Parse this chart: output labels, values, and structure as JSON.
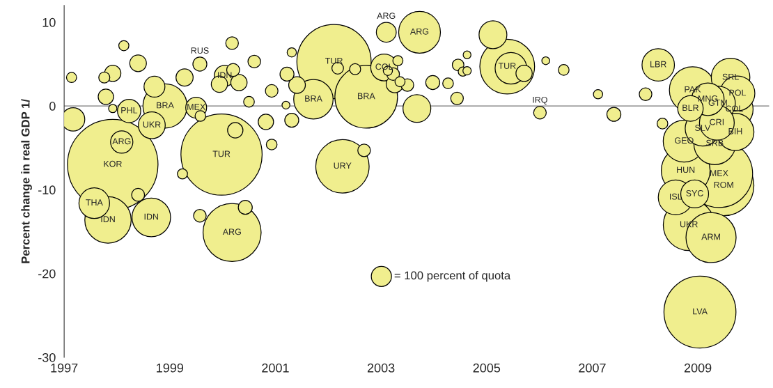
{
  "chart_data": {
    "type": "bubble",
    "ylabel": "Percent change in real GDP 1/",
    "x": [
      1997.92,
      1999.98,
      2002.11,
      2009.04,
      2002.72,
      2009.49,
      2009.4,
      2000.18,
      2005.39,
      2002.27,
      2008.83,
      2009.25,
      2008.77,
      1997.83,
      2008.9,
      1998.91,
      2003.73,
      2008.74,
      2009.32,
      2001.72,
      1998.65,
      2009.62,
      2009.69,
      2009.71,
      2009.75,
      2009.09,
      2008.58,
      2009.38,
      2009.36,
      2008.25,
      2009.19,
      2005.46,
      1997.57,
      2003.68,
      2005.12,
      2008.94,
      1998.66,
      2003.06,
      2008.86,
      1998.23,
      1997.17,
      1998.09,
      1998.71,
      1999.5,
      2000.04,
      2003.1,
      1999.28,
      2003.26,
      1998.4,
      2001.41,
      1997.92,
      1999.94,
      2000.31,
      2005.71,
      1997.79,
      2000.24,
      2000.82,
      1999.57,
      2000.43,
      2001.22,
      2001.31,
      2003.98,
      2007.41,
      1998.4,
      2000.2,
      2000.18,
      2000.6,
      1999.57,
      2000.93,
      2002.68,
      2003.23,
      2003.5,
      2004.44,
      2006.01,
      2008.01,
      2002.18,
      2004.46,
      1997.76,
      2002.51,
      1999.58,
      2000.5,
      2000.93,
      2004.27,
      2006.46,
      2008.33,
      1997.14,
      1998.13,
      1999.24,
      2003.32,
      2003.36,
      2001.31,
      2003.13,
      2004.55,
      2007.11,
      1997.92,
      2004.63,
      2001.2,
      2004.63,
      2006.12
    ],
    "values": [
      -7.0,
      -5.8,
      5.3,
      -24.6,
      1.1,
      -9.5,
      -8.1,
      -15.1,
      4.7,
      -7.2,
      -14.2,
      -15.7,
      -7.7,
      -13.6,
      1.9,
      0.0,
      8.8,
      -4.2,
      -4.5,
      0.8,
      -13.3,
      3.4,
      -0.4,
      -3.1,
      1.5,
      -2.7,
      -10.9,
      0.3,
      -2.0,
      4.9,
      0.8,
      4.5,
      -11.6,
      -0.3,
      8.5,
      -10.5,
      -2.3,
      4.6,
      -0.3,
      -0.6,
      -1.6,
      -4.3,
      2.3,
      -0.2,
      3.6,
      8.8,
      3.4,
      2.6,
      5.1,
      2.5,
      3.9,
      2.6,
      2.8,
      3.9,
      1.1,
      -2.9,
      -1.9,
      5.0,
      -12.1,
      3.8,
      -1.7,
      2.8,
      -1.0,
      -10.6,
      4.3,
      7.5,
      5.3,
      -13.1,
      1.8,
      -5.3,
      3.8,
      2.5,
      0.9,
      -0.8,
      1.4,
      4.5,
      4.9,
      3.4,
      4.4,
      -1.2,
      0.5,
      -4.6,
      2.7,
      4.3,
      -2.1,
      3.4,
      7.2,
      -8.1,
      5.4,
      2.9,
      6.4,
      4.2,
      4.1,
      1.4,
      -0.3,
      4.2,
      0.1,
      6.1,
      5.4
    ],
    "sizes": [
      2010,
      1617,
      1351,
      1271,
      963,
      892,
      1110,
      827,
      735,
      698,
      641,
      616,
      583,
      527,
      527,
      478,
      428,
      428,
      428,
      381,
      365,
      365,
      347,
      339,
      297,
      297,
      297,
      297,
      297,
      258,
      258,
      245,
      230,
      190,
      190,
      190,
      177,
      177,
      159,
      133,
      133,
      122,
      107,
      107,
      107,
      97,
      72,
      72,
      68,
      68,
      65,
      65,
      65,
      65,
      58,
      58,
      58,
      48,
      48,
      48,
      48,
      48,
      48,
      41,
      41,
      39,
      39,
      39,
      39,
      39,
      39,
      39,
      39,
      39,
      39,
      33,
      33,
      30,
      30,
      28,
      28,
      28,
      28,
      28,
      28,
      25,
      25,
      25,
      25,
      25,
      21,
      21,
      21,
      21,
      17,
      17,
      15,
      15,
      15
    ],
    "value_labels": [
      "KOR",
      "TUR",
      "TUR",
      "LVA",
      "BRA",
      "ROM",
      "MEX",
      "ARG",
      "TUR",
      "URY",
      "UKR",
      "ARM",
      "HUN",
      "IDN",
      "PAK",
      "BRA",
      "ARG",
      "GEO",
      "SRB",
      "BRA",
      "IDN",
      "SRL",
      "COL",
      "BIH",
      "POL",
      "SLV",
      "ISL",
      "GTM",
      "CRI",
      "LBR",
      "MNG",
      null,
      "THA",
      null,
      null,
      "SYC",
      "UKR",
      "COL",
      "BLR",
      "PHL",
      null,
      "ARG",
      null,
      "MEX",
      "IDN",
      "ARG",
      null,
      null,
      null,
      null,
      null,
      null,
      null,
      null,
      null,
      null,
      null,
      "RUS",
      null,
      null,
      null,
      null,
      null,
      null,
      null,
      null,
      null,
      null,
      null,
      null,
      null,
      null,
      null,
      "IRQ",
      null,
      null,
      null,
      null,
      null,
      null,
      null,
      null,
      null,
      null,
      null,
      null,
      null,
      null,
      null,
      null,
      null,
      null,
      null,
      null,
      null,
      null,
      null,
      null,
      null
    ],
    "color": "#f0ee8e",
    "size_legend": [
      {
        "value": 100,
        "label": "= 100 percent of quota"
      }
    ],
    "xlim": [
      1997,
      2010.35
    ],
    "xticks": [
      1997,
      1999,
      2001,
      2003,
      2005,
      2007,
      2009
    ],
    "ylim": [
      -30,
      12
    ],
    "yticks": [
      -30,
      -20,
      -10,
      0,
      10
    ],
    "ref_lines": [
      {
        "axis": "y",
        "value": 0,
        "color": "#777777"
      }
    ],
    "grid": false
  }
}
